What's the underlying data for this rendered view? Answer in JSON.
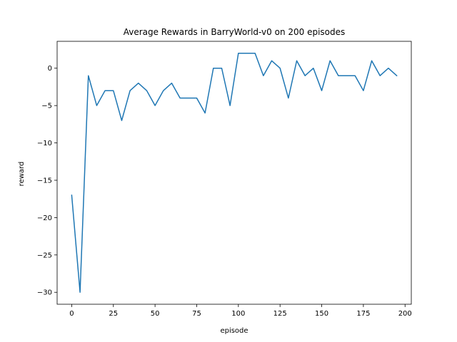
{
  "chart_data": {
    "type": "line",
    "title": "Average Rewards in BarryWorld-v0 on 200 episodes",
    "xlabel": "episode",
    "ylabel": "reward",
    "xlim": [
      -8.75,
      203.75
    ],
    "ylim": [
      -31.6,
      3.6
    ],
    "xticks": [
      0,
      25,
      50,
      75,
      100,
      125,
      150,
      175,
      200
    ],
    "yticks": [
      -30,
      -25,
      -20,
      -15,
      -10,
      -5,
      0
    ],
    "grid": false,
    "legend": "none",
    "series": [
      {
        "color": "#1f77b4",
        "x": [
          0,
          5,
          10,
          15,
          20,
          25,
          30,
          35,
          40,
          45,
          50,
          55,
          60,
          65,
          70,
          75,
          80,
          85,
          90,
          95,
          100,
          105,
          110,
          115,
          120,
          125,
          130,
          135,
          140,
          145,
          150,
          155,
          160,
          165,
          170,
          175,
          180,
          185,
          190,
          195
        ],
        "y": [
          -17,
          -30,
          -1,
          -5,
          -3,
          -3,
          -7,
          -3,
          -2,
          -3,
          -5,
          -3,
          -2,
          -4,
          -4,
          -4,
          -6,
          0,
          0,
          -5,
          2,
          2,
          2,
          -1,
          1,
          0,
          -4,
          1,
          -1,
          0,
          -3,
          1,
          -1,
          -1,
          -1,
          -3,
          1,
          -1,
          0,
          -1
        ]
      }
    ]
  }
}
